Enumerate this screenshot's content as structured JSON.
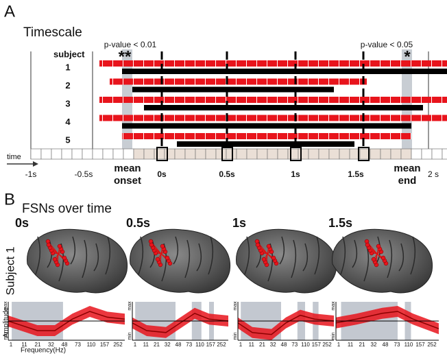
{
  "panel_a": {
    "label": "A",
    "title": "Timescale",
    "subject_header": "subject",
    "subjects": [
      "1",
      "2",
      "3",
      "4",
      "5"
    ],
    "annotations": [
      {
        "text": "p-value < 0.01",
        "stars": "**"
      },
      {
        "text": "p-value < 0.05",
        "stars": "*"
      }
    ],
    "time_label": "time",
    "time_ticks": [
      "-1s",
      "-0.5s",
      "0s",
      "0.5s",
      "1s",
      "1.5s",
      "2 s"
    ],
    "mean_onset": [
      "mean",
      "onset"
    ],
    "mean_end": [
      "mean",
      "end"
    ]
  },
  "panel_b": {
    "label": "B",
    "title": "FSNs over time",
    "row_label": "Subject 1",
    "times": [
      "0s",
      "0.5s",
      "1s",
      "1.5s"
    ],
    "y_label": "Amplitude",
    "y_max": "max",
    "y_min": "min",
    "freq_ticks": [
      "1",
      "11",
      "21",
      "32",
      "48",
      "73",
      "110",
      "157",
      "252"
    ],
    "x_label": "Frequency(Hz)"
  }
}
